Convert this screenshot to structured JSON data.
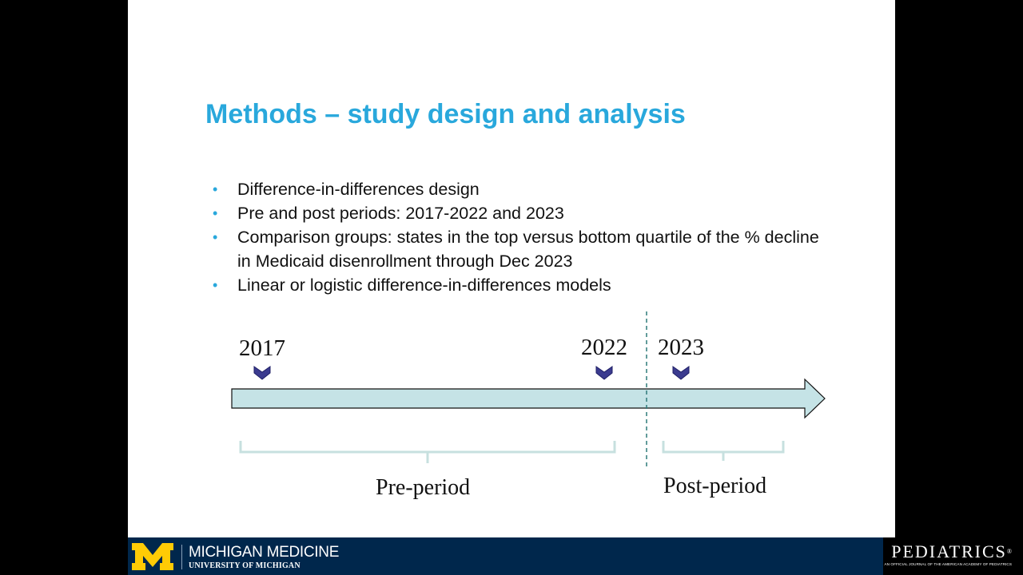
{
  "slide": {
    "title": "Methods – study design and analysis",
    "bullets": [
      "Difference-in-differences design",
      "Pre and post periods: 2017-2022 and 2023",
      "Comparison groups: states in the top versus bottom quartile of the % decline in Medicaid disenrollment through Dec 2023",
      "Linear or logistic difference-in-differences models"
    ],
    "bullet_symbol": "•"
  },
  "timeline": {
    "years": [
      "2017",
      "2022",
      "2023"
    ],
    "pre_label": "Pre-period",
    "post_label": "Post-period",
    "arrow_fill": "#c5e3e6",
    "bracket_color": "#c7e0df",
    "marker_color": "#3b3b8f"
  },
  "footer": {
    "logo_letter": "M",
    "org_name": "MICHIGAN MEDICINE",
    "org_sub": "UNIVERSITY OF MICHIGAN",
    "journal_name": "PEDIATRICS",
    "journal_mark": "®",
    "journal_tagline": "AN OFFICIAL JOURNAL OF THE AMERICAN ACADEMY OF PEDIATRICS"
  },
  "colors": {
    "title": "#29a8dc",
    "footer_bg": "#00274c",
    "maize": "#ffcb05"
  }
}
